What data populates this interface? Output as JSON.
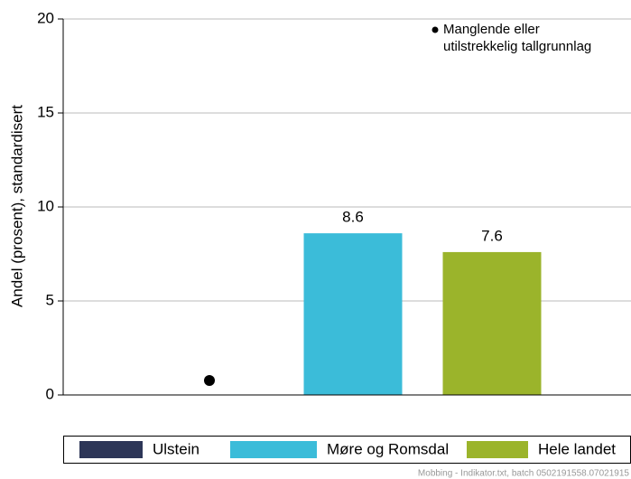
{
  "chart_data": {
    "type": "bar",
    "ylabel": "Andel (prosent), standardisert",
    "categories": [
      "Ulstein",
      "Møre og Romsdal",
      "Hele landet"
    ],
    "values": [
      null,
      8.6,
      7.6
    ],
    "colors": [
      "#2d3658",
      "#3bbcd9",
      "#9bb42b"
    ],
    "ylim": [
      0,
      20
    ],
    "yticks": [
      0,
      5,
      10,
      15,
      20
    ],
    "grid": true,
    "annotation": [
      "Manglende eller",
      "utilstrekkelig tallgrunnlag"
    ],
    "footer": "Mobbing - Indikator.txt, batch 0502191558.07021915"
  }
}
